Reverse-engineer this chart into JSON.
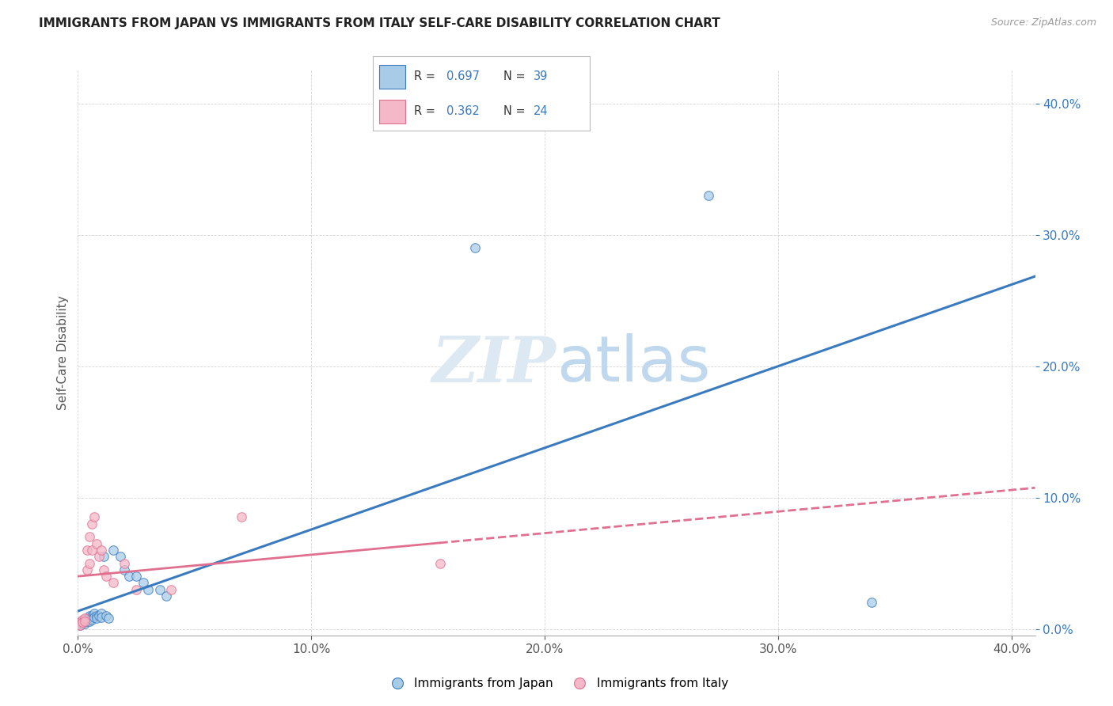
{
  "title": "IMMIGRANTS FROM JAPAN VS IMMIGRANTS FROM ITALY SELF-CARE DISABILITY CORRELATION CHART",
  "source": "Source: ZipAtlas.com",
  "ylabel": "Self-Care Disability",
  "background_color": "#ffffff",
  "japan_color": "#a8cce8",
  "italy_color": "#f4b8c8",
  "japan_trendline_color": "#3a7abf",
  "italy_trendline_color": "#e07090",
  "japan_R": "0.697",
  "japan_N": "39",
  "italy_R": "0.362",
  "italy_N": "24",
  "japan_x": [
    0.001,
    0.001,
    0.001,
    0.002,
    0.002,
    0.002,
    0.003,
    0.003,
    0.003,
    0.004,
    0.004,
    0.005,
    0.005,
    0.005,
    0.006,
    0.006,
    0.006,
    0.007,
    0.007,
    0.008,
    0.008,
    0.009,
    0.01,
    0.01,
    0.011,
    0.012,
    0.013,
    0.015,
    0.018,
    0.02,
    0.022,
    0.025,
    0.028,
    0.03,
    0.035,
    0.038,
    0.17,
    0.27,
    0.34
  ],
  "japan_y": [
    0.005,
    0.004,
    0.003,
    0.006,
    0.005,
    0.004,
    0.007,
    0.006,
    0.004,
    0.008,
    0.006,
    0.01,
    0.008,
    0.006,
    0.01,
    0.008,
    0.007,
    0.012,
    0.009,
    0.01,
    0.008,
    0.01,
    0.012,
    0.009,
    0.055,
    0.01,
    0.008,
    0.06,
    0.055,
    0.045,
    0.04,
    0.04,
    0.035,
    0.03,
    0.03,
    0.025,
    0.29,
    0.33,
    0.02
  ],
  "italy_x": [
    0.001,
    0.001,
    0.002,
    0.002,
    0.003,
    0.003,
    0.004,
    0.004,
    0.005,
    0.005,
    0.006,
    0.006,
    0.007,
    0.008,
    0.009,
    0.01,
    0.011,
    0.012,
    0.015,
    0.02,
    0.025,
    0.04,
    0.07,
    0.155
  ],
  "italy_y": [
    0.005,
    0.003,
    0.007,
    0.005,
    0.008,
    0.006,
    0.06,
    0.045,
    0.07,
    0.05,
    0.08,
    0.06,
    0.085,
    0.065,
    0.055,
    0.06,
    0.045,
    0.04,
    0.035,
    0.05,
    0.03,
    0.03,
    0.085,
    0.05
  ],
  "xlim": [
    0.0,
    0.41
  ],
  "ylim": [
    -0.005,
    0.425
  ],
  "xticks": [
    0.0,
    0.1,
    0.2,
    0.3,
    0.4
  ],
  "yticks": [
    0.0,
    0.1,
    0.2,
    0.3,
    0.4
  ]
}
